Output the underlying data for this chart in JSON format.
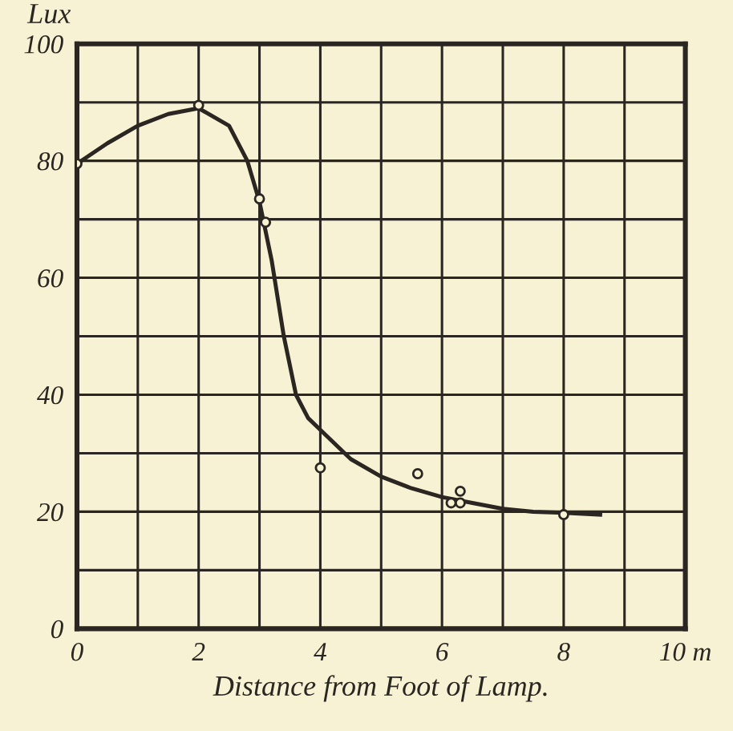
{
  "chart_data": {
    "type": "scatter",
    "ylabel": "Lux",
    "xlabel": "Distance from Foot of Lamp.",
    "xlim": [
      0,
      10
    ],
    "ylim": [
      0,
      100
    ],
    "xticks": [
      0,
      {
        "value": 1,
        "label": null
      },
      2,
      {
        "value": 3,
        "label": null
      },
      4,
      {
        "value": 5,
        "label": null
      },
      6,
      {
        "value": 7,
        "label": null
      },
      8,
      {
        "value": 9,
        "label": null
      },
      {
        "value": 10,
        "label": "10 m"
      }
    ],
    "yticks": [
      0,
      {
        "value": 10,
        "label": null
      },
      20,
      {
        "value": 30,
        "label": null
      },
      40,
      {
        "value": 50,
        "label": null
      },
      60,
      {
        "value": 70,
        "label": null
      },
      80,
      {
        "value": 90,
        "label": null
      },
      100
    ],
    "grid": true,
    "series": [
      {
        "type": "line",
        "color": "#2b2622",
        "x": [
          0,
          0.5,
          1,
          1.5,
          2,
          2.5,
          2.8,
          3,
          3.2,
          3.4,
          3.6,
          3.8,
          4,
          4.5,
          5,
          5.5,
          6,
          6.5,
          7,
          7.5,
          8,
          8.6
        ],
        "values": [
          79.5,
          83,
          86,
          88,
          89,
          86,
          80,
          73,
          63,
          50,
          40,
          36,
          34,
          29,
          26,
          24,
          22.5,
          21.5,
          20.5,
          20,
          19.8,
          19.5
        ]
      },
      {
        "marker": "circle",
        "color": "#2b2622",
        "x": [
          0,
          2,
          3,
          3.1,
          4,
          5.6,
          6.3,
          6.15,
          6.3,
          8
        ],
        "values": [
          79.5,
          89.5,
          73.5,
          69.5,
          27.5,
          26.5,
          23.5,
          21.5,
          21.5,
          19.5
        ]
      }
    ]
  }
}
